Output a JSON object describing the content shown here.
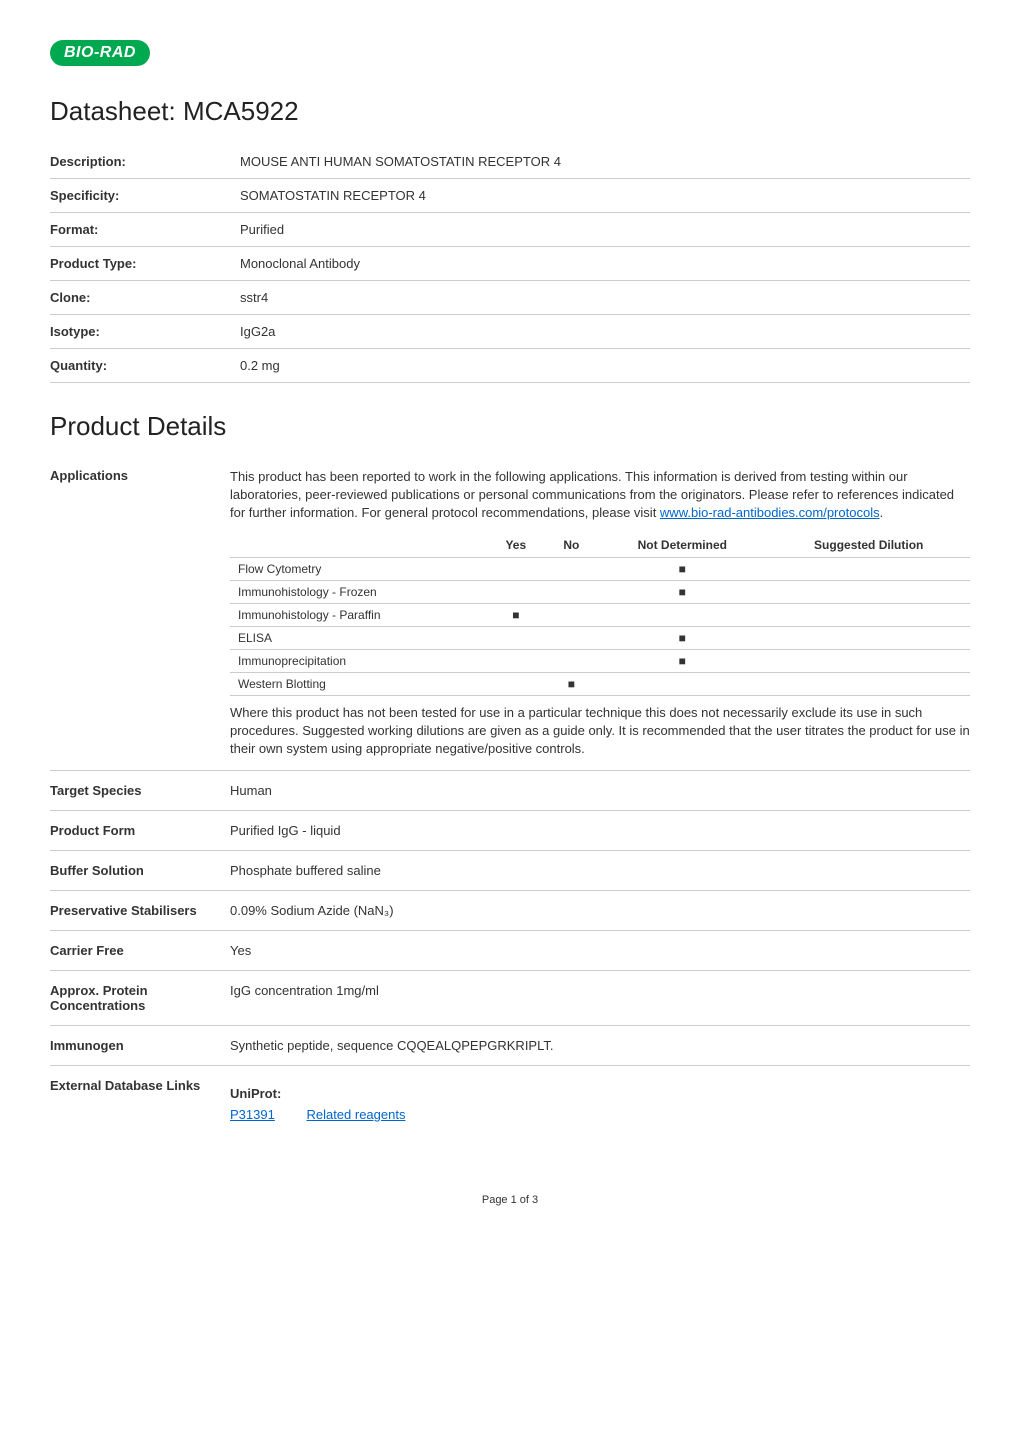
{
  "logo": "BIO-RAD",
  "datasheet_title": "Datasheet: MCA5922",
  "header_rows": [
    {
      "label": "Description:",
      "value": "MOUSE ANTI HUMAN SOMATOSTATIN RECEPTOR 4"
    },
    {
      "label": "Specificity:",
      "value": "SOMATOSTATIN RECEPTOR 4"
    },
    {
      "label": "Format:",
      "value": "Purified"
    },
    {
      "label": "Product Type:",
      "value": "Monoclonal Antibody"
    },
    {
      "label": "Clone:",
      "value": "sstr4"
    },
    {
      "label": "Isotype:",
      "value": "IgG2a"
    },
    {
      "label": "Quantity:",
      "value": "0.2 mg"
    }
  ],
  "product_details_title": "Product Details",
  "applications": {
    "label": "Applications",
    "intro_prefix": "This product has been reported to work in the following applications. This information is derived from testing within our laboratories, peer-reviewed publications or personal communications from the originators. Please refer to references indicated for further information. For general protocol recommendations, please visit ",
    "link_text": "www.bio-rad-antibodies.com/protocols",
    "intro_suffix": ".",
    "table": {
      "headers": [
        "",
        "Yes",
        "No",
        "Not Determined",
        "Suggested Dilution"
      ],
      "rows": [
        {
          "name": "Flow Cytometry",
          "yes": "",
          "no": "",
          "nd": "■",
          "dil": ""
        },
        {
          "name": "Immunohistology - Frozen",
          "yes": "",
          "no": "",
          "nd": "■",
          "dil": ""
        },
        {
          "name": "Immunohistology - Paraffin",
          "yes": "■",
          "no": "",
          "nd": "",
          "dil": ""
        },
        {
          "name": "ELISA",
          "yes": "",
          "no": "",
          "nd": "■",
          "dil": ""
        },
        {
          "name": "Immunoprecipitation",
          "yes": "",
          "no": "",
          "nd": "■",
          "dil": ""
        },
        {
          "name": "Western Blotting",
          "yes": "",
          "no": "■",
          "nd": "",
          "dil": ""
        }
      ]
    },
    "after_table": "Where this product has not been tested for use in a particular technique this does not necessarily exclude its use in such procedures. Suggested working dilutions are given as a guide only. It is recommended that the user titrates the product for use in their own system using appropriate negative/positive controls."
  },
  "detail_rows": [
    {
      "label": "Target Species",
      "value": "Human"
    },
    {
      "label": "Product Form",
      "value": "Purified IgG - liquid"
    },
    {
      "label": "Buffer Solution",
      "value": "Phosphate buffered saline"
    },
    {
      "label": "Preservative Stabilisers",
      "value": "0.09% Sodium Azide (NaN₃)"
    },
    {
      "label": "Carrier Free",
      "value": "Yes"
    },
    {
      "label": "Approx. Protein Concentrations",
      "value": "IgG concentration 1mg/ml"
    },
    {
      "label": "Immunogen",
      "value": "Synthetic peptide, sequence CQQEALQPEPGRKRIPLT."
    }
  ],
  "external_db": {
    "label": "External Database Links",
    "heading": "UniProt:",
    "id": "P31391",
    "related": "Related reagents"
  },
  "footer": "Page 1 of 3"
}
